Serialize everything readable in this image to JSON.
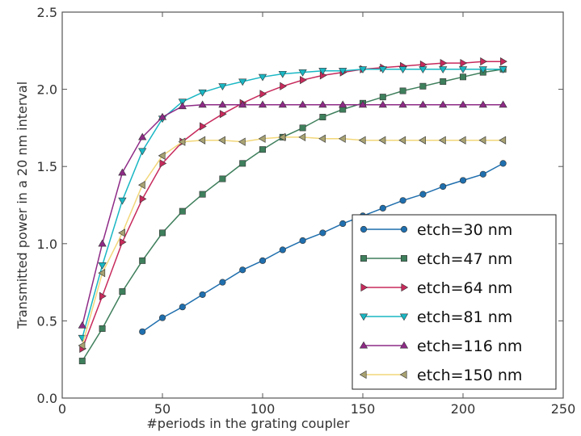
{
  "chart_data": {
    "type": "line",
    "title": "",
    "xlabel": "#periods in the grating coupler",
    "ylabel": "Transmitted power in a 20 nm interval",
    "xlim": [
      0,
      250
    ],
    "ylim": [
      0.0,
      2.5
    ],
    "xticks": [
      "0",
      "50",
      "100",
      "150",
      "200",
      "250"
    ],
    "yticks": [
      "0.0",
      "0.5",
      "1.0",
      "1.5",
      "2.0",
      "2.5"
    ],
    "grid": false,
    "legend_position": "lower-right",
    "series": [
      {
        "name": "etch=30 nm",
        "color": "#1f6fae",
        "marker": "circle",
        "x": [
          40,
          50,
          60,
          70,
          80,
          90,
          100,
          110,
          120,
          130,
          140,
          150,
          160,
          170,
          180,
          190,
          200,
          210,
          220
        ],
        "values": [
          0.43,
          0.52,
          0.59,
          0.67,
          0.75,
          0.83,
          0.89,
          0.96,
          1.02,
          1.07,
          1.13,
          1.18,
          1.23,
          1.28,
          1.32,
          1.37,
          1.41,
          1.45,
          1.52
        ]
      },
      {
        "name": "etch=47 nm",
        "color": "#3e7f5c",
        "marker": "square",
        "x": [
          10,
          20,
          30,
          40,
          50,
          60,
          70,
          80,
          90,
          100,
          110,
          120,
          130,
          140,
          150,
          160,
          170,
          180,
          190,
          200,
          210,
          220
        ],
        "values": [
          0.24,
          0.45,
          0.69,
          0.89,
          1.07,
          1.21,
          1.32,
          1.42,
          1.52,
          1.61,
          1.69,
          1.75,
          1.82,
          1.87,
          1.91,
          1.95,
          1.99,
          2.02,
          2.05,
          2.08,
          2.11,
          2.13
        ]
      },
      {
        "name": "etch=64 nm",
        "color": "#c72a5c",
        "marker": "triangle-right",
        "x": [
          10,
          20,
          30,
          40,
          50,
          60,
          70,
          80,
          90,
          100,
          110,
          120,
          130,
          140,
          150,
          160,
          170,
          180,
          190,
          200,
          210,
          220
        ],
        "values": [
          0.32,
          0.66,
          1.01,
          1.29,
          1.52,
          1.66,
          1.76,
          1.84,
          1.91,
          1.97,
          2.02,
          2.06,
          2.09,
          2.11,
          2.13,
          2.14,
          2.15,
          2.16,
          2.17,
          2.17,
          2.18,
          2.18
        ]
      },
      {
        "name": "etch=81 nm",
        "color": "#19b7c4",
        "marker": "triangle-down",
        "x": [
          10,
          20,
          30,
          40,
          50,
          60,
          70,
          80,
          90,
          100,
          110,
          120,
          130,
          140,
          150,
          160,
          170,
          180,
          190,
          200,
          210,
          220
        ],
        "values": [
          0.39,
          0.86,
          1.28,
          1.6,
          1.81,
          1.92,
          1.98,
          2.02,
          2.05,
          2.08,
          2.1,
          2.11,
          2.12,
          2.12,
          2.13,
          2.13,
          2.13,
          2.13,
          2.13,
          2.13,
          2.13,
          2.13
        ]
      },
      {
        "name": "etch=116 nm",
        "color": "#8e2a86",
        "marker": "triangle-up",
        "x": [
          10,
          20,
          30,
          40,
          50,
          60,
          70,
          80,
          90,
          100,
          110,
          120,
          130,
          140,
          150,
          160,
          170,
          180,
          190,
          200,
          210,
          220
        ],
        "values": [
          0.47,
          1.0,
          1.46,
          1.69,
          1.82,
          1.89,
          1.9,
          1.9,
          1.9,
          1.9,
          1.9,
          1.9,
          1.9,
          1.9,
          1.9,
          1.9,
          1.9,
          1.9,
          1.9,
          1.9,
          1.9,
          1.9
        ]
      },
      {
        "name": "etch=150 nm",
        "color": "#a8a273",
        "line_color": "#f2d77a",
        "marker": "triangle-left",
        "x": [
          10,
          20,
          30,
          40,
          50,
          60,
          70,
          80,
          90,
          100,
          110,
          120,
          130,
          140,
          150,
          160,
          170,
          180,
          190,
          200,
          210,
          220
        ],
        "values": [
          0.34,
          0.81,
          1.07,
          1.38,
          1.57,
          1.66,
          1.67,
          1.67,
          1.66,
          1.68,
          1.69,
          1.69,
          1.68,
          1.68,
          1.67,
          1.67,
          1.67,
          1.67,
          1.67,
          1.67,
          1.67,
          1.67
        ]
      }
    ]
  }
}
